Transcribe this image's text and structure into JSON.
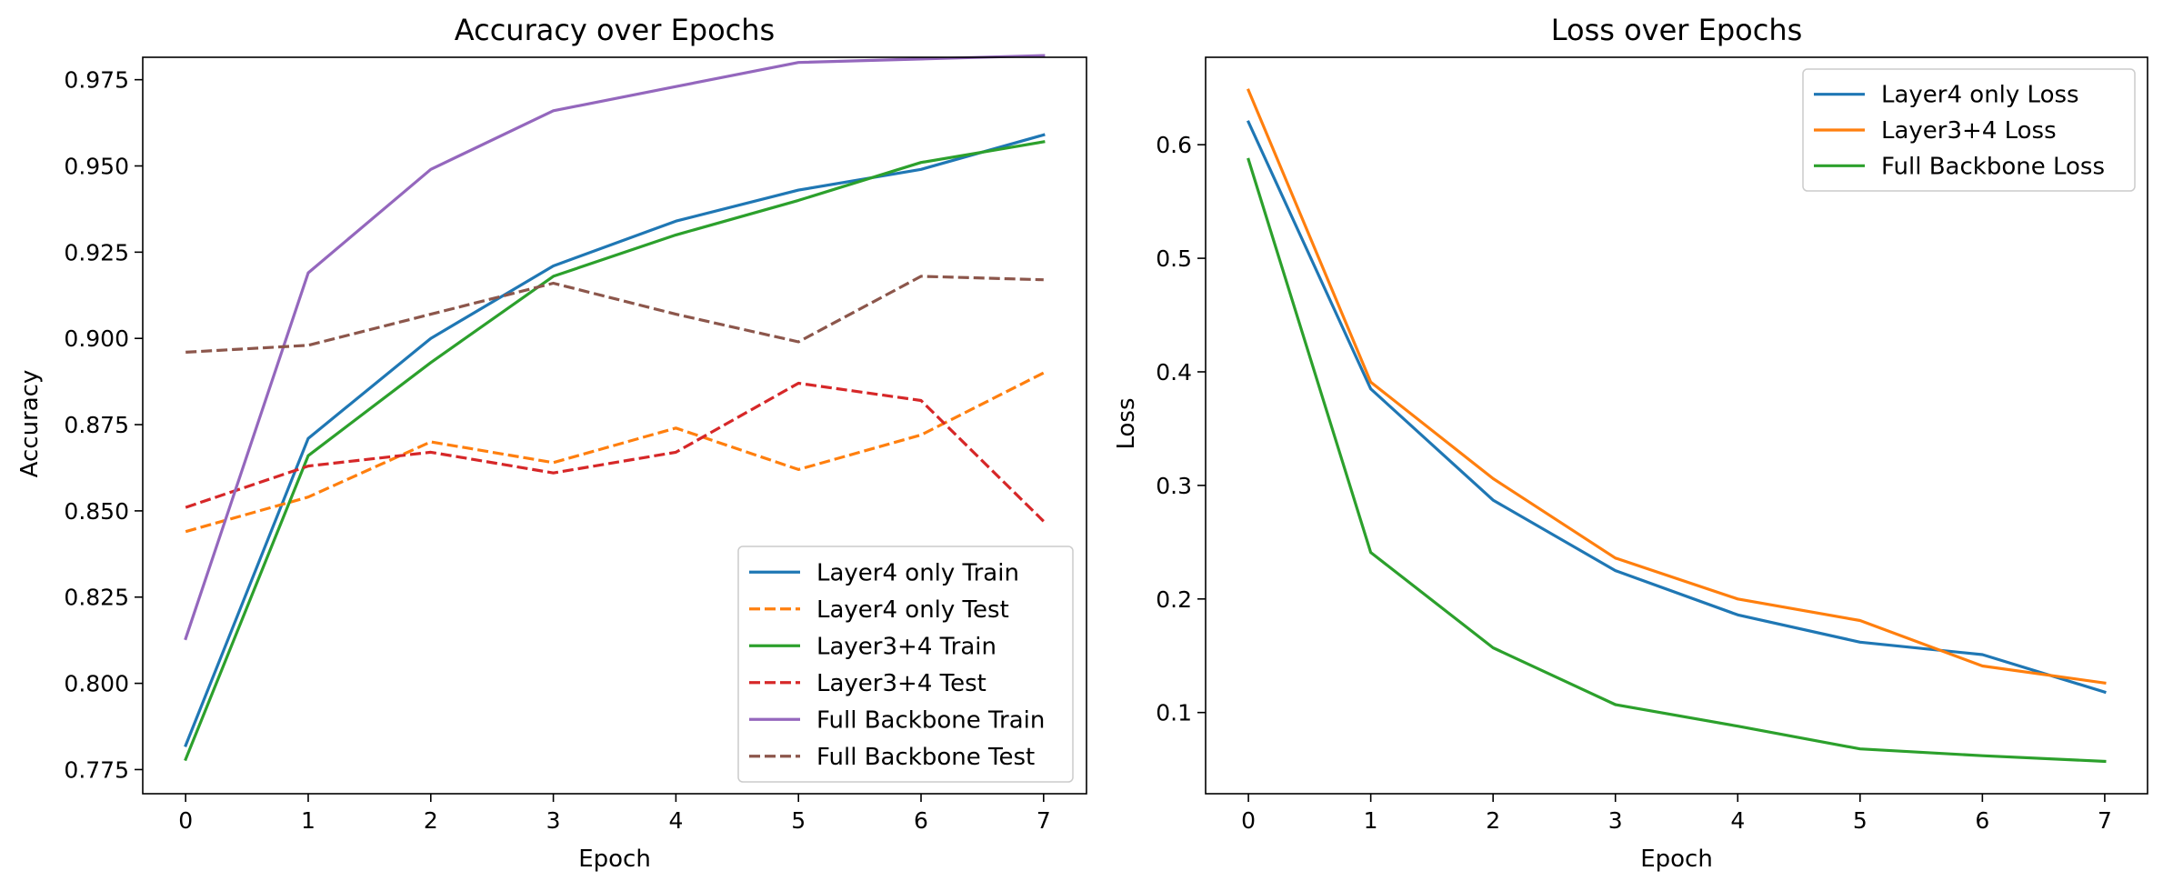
{
  "chart_data": [
    {
      "type": "line",
      "title": "Accuracy over Epochs",
      "xlabel": "Epoch",
      "ylabel": "Accuracy",
      "x": [
        0,
        1,
        2,
        3,
        4,
        5,
        6,
        7
      ],
      "xlim": [
        -0.35,
        7.35
      ],
      "ylim": [
        0.768,
        0.9815
      ],
      "xticks": [
        0,
        1,
        2,
        3,
        4,
        5,
        6,
        7
      ],
      "yticks": [
        0.775,
        0.8,
        0.825,
        0.85,
        0.875,
        0.9,
        0.925,
        0.95,
        0.975
      ],
      "ytick_labels": [
        "0.775",
        "0.800",
        "0.825",
        "0.850",
        "0.875",
        "0.900",
        "0.925",
        "0.950",
        "0.975"
      ],
      "grid": false,
      "legend_position": "lower-right",
      "series": [
        {
          "name": "Layer4 only Train",
          "color": "#1f77b4",
          "dash": "solid",
          "values": [
            0.782,
            0.871,
            0.9,
            0.921,
            0.934,
            0.943,
            0.949,
            0.959
          ]
        },
        {
          "name": "Layer4 only Test",
          "color": "#ff7f0e",
          "dash": "dashed",
          "values": [
            0.844,
            0.854,
            0.87,
            0.864,
            0.874,
            0.862,
            0.872,
            0.89
          ]
        },
        {
          "name": "Layer3+4 Train",
          "color": "#2ca02c",
          "dash": "solid",
          "values": [
            0.778,
            0.866,
            0.893,
            0.918,
            0.93,
            0.94,
            0.951,
            0.957
          ]
        },
        {
          "name": "Layer3+4 Test",
          "color": "#d62728",
          "dash": "dashed",
          "values": [
            0.851,
            0.863,
            0.867,
            0.861,
            0.867,
            0.887,
            0.882,
            0.847
          ]
        },
        {
          "name": "Full Backbone Train",
          "color": "#9467bd",
          "dash": "solid",
          "values": [
            0.813,
            0.919,
            0.949,
            0.966,
            0.973,
            0.98,
            0.981,
            0.982
          ]
        },
        {
          "name": "Full Backbone Test",
          "color": "#8c564b",
          "dash": "dashed",
          "values": [
            0.896,
            0.898,
            0.907,
            0.916,
            0.907,
            0.899,
            0.918,
            0.917
          ]
        }
      ]
    },
    {
      "type": "line",
      "title": "Loss over Epochs",
      "xlabel": "Epoch",
      "ylabel": "Loss",
      "x": [
        0,
        1,
        2,
        3,
        4,
        5,
        6,
        7
      ],
      "xlim": [
        -0.35,
        7.35
      ],
      "ylim": [
        0.0285,
        0.677
      ],
      "xticks": [
        0,
        1,
        2,
        3,
        4,
        5,
        6,
        7
      ],
      "yticks": [
        0.1,
        0.2,
        0.3,
        0.4,
        0.5,
        0.6
      ],
      "ytick_labels": [
        "0.1",
        "0.2",
        "0.3",
        "0.4",
        "0.5",
        "0.6"
      ],
      "grid": false,
      "legend_position": "upper-right",
      "series": [
        {
          "name": "Layer4 only Loss",
          "color": "#1f77b4",
          "dash": "solid",
          "values": [
            0.62,
            0.385,
            0.287,
            0.225,
            0.186,
            0.162,
            0.151,
            0.118
          ]
        },
        {
          "name": "Layer3+4 Loss",
          "color": "#ff7f0e",
          "dash": "solid",
          "values": [
            0.648,
            0.391,
            0.306,
            0.236,
            0.2,
            0.181,
            0.141,
            0.126
          ]
        },
        {
          "name": "Full Backbone Loss",
          "color": "#2ca02c",
          "dash": "solid",
          "values": [
            0.587,
            0.241,
            0.157,
            0.107,
            0.088,
            0.068,
            0.062,
            0.057
          ]
        }
      ]
    }
  ]
}
